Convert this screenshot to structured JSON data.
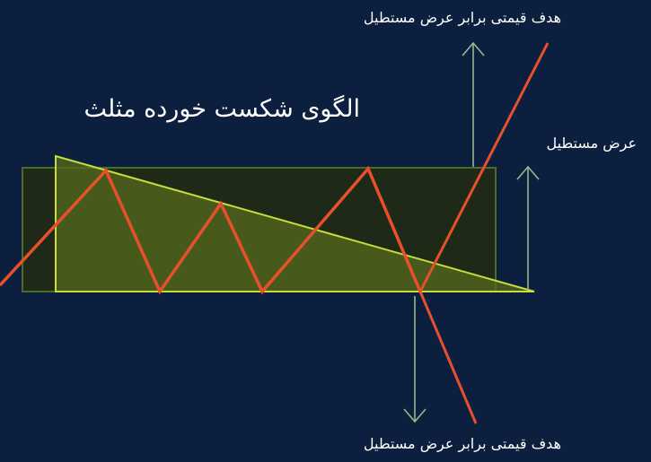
{
  "title": "الگوی شکست خورده مثلث",
  "labels": {
    "target_top": "هدف قیمتی برابر عرض مستطیل",
    "target_bottom": "هدف قیمتی برابر عرض مستطیل",
    "rectangle_width": "عرض مستطیل"
  },
  "colors": {
    "background": "#0d1f3e",
    "rectangle_fill": "#1e2a17",
    "rectangle_stroke": "#4f6b2a",
    "triangle_fill": "#556b1e",
    "triangle_stroke": "#c8dc3a",
    "price_line": "#e8502c",
    "arrow": "#8fbc8f",
    "text": "#ffffff"
  }
}
